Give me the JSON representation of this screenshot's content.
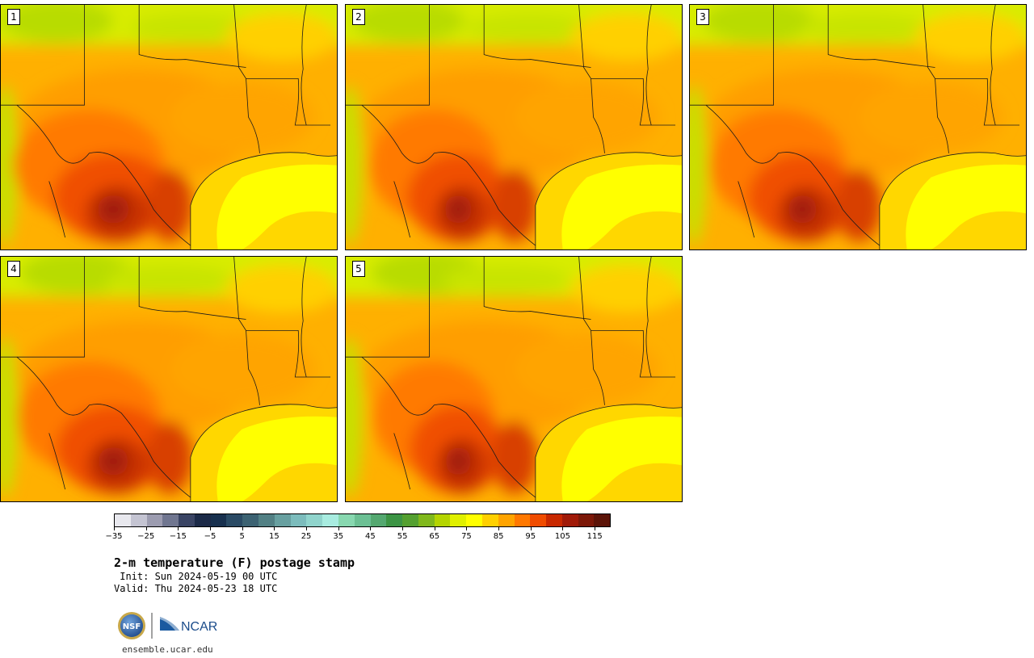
{
  "panels": [
    {
      "label": "1",
      "heat": 1.0
    },
    {
      "label": "2",
      "heat": 0.85
    },
    {
      "label": "3",
      "heat": 0.9
    },
    {
      "label": "4",
      "heat": 0.95
    },
    {
      "label": "5",
      "heat": 0.8
    }
  ],
  "colorbar": {
    "min": -35,
    "max": 120,
    "step": 5,
    "tick_labels": [
      "−35",
      "−25",
      "−15",
      "−5",
      "5",
      "15",
      "25",
      "35",
      "45",
      "55",
      "65",
      "75",
      "85",
      "95",
      "105",
      "115"
    ],
    "colors": [
      "#e8e8ee",
      "#c4c4d2",
      "#9c9cb0",
      "#707690",
      "#3a4464",
      "#1c2a48",
      "#18304e",
      "#2a4a64",
      "#3c6272",
      "#528084",
      "#68a0a0",
      "#7cbcbc",
      "#90d4cc",
      "#a8ece0",
      "#88d8b0",
      "#6cc094",
      "#54a870",
      "#3c9444",
      "#54a030",
      "#80b81c",
      "#b4d400",
      "#e0f000",
      "#ffff00",
      "#ffd000",
      "#ffa400",
      "#ff7800",
      "#f04c00",
      "#c82800",
      "#a01a08",
      "#7c1808",
      "#5c1408"
    ]
  },
  "title": "2-m temperature (F) postage stamp",
  "init": " Init: Sun 2024-05-19 00 UTC",
  "valid": "Valid: Thu 2024-05-23 18 UTC",
  "logos": {
    "nsf": "NSF",
    "ncar": "NCAR"
  },
  "footer": "ensemble.ucar.edu",
  "colors": {
    "gulf": "#ffff00",
    "gulf_shelf": "#ffd700",
    "cool": "#b8dc00",
    "warm": "#ff9e00",
    "hot": "#f05000",
    "hottest": "#a01e08"
  }
}
